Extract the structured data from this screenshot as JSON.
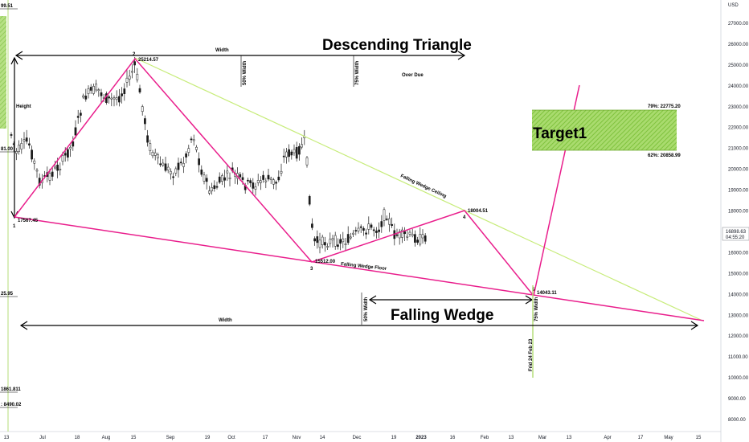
{
  "chart_data": {
    "type": "candlestick",
    "y_axis": {
      "unit": "USD",
      "ticks": [
        8000,
        9000,
        10000,
        11000,
        12000,
        13000,
        14000,
        15000,
        16000,
        17000,
        18000,
        19000,
        20000,
        21000,
        22000,
        23000,
        24000,
        25000,
        26000,
        27000
      ],
      "tick_labels": [
        "8000.00",
        "9000.00",
        "10000.00",
        "11000.00",
        "12000.00",
        "13000.00",
        "14000.00",
        "15000.00",
        "16000.00",
        "17000.00",
        "18000.00",
        "19000.00",
        "20000.00",
        "21000.00",
        "22000.00",
        "23000.00",
        "24000.00",
        "25000.00",
        "26000.00",
        "27000.00"
      ],
      "last_price": "16898.63",
      "countdown": "04:55:20"
    },
    "x_axis": {
      "tick_labels": [
        "13",
        "Jul",
        "18",
        "Aug",
        "15",
        "Sep",
        "19",
        "Oct",
        "17",
        "Nov",
        "14",
        "Dec",
        "19",
        "2023",
        "16",
        "Feb",
        "13",
        "Mar",
        "13",
        "Apr",
        "17",
        "May",
        "15"
      ]
    },
    "pattern_points": [
      {
        "label": "1",
        "value": "17567.45"
      },
      {
        "label": "2",
        "value": "25214.57"
      },
      {
        "label": "3",
        "value": "15512.00"
      },
      {
        "label": "4",
        "value": "18004.51"
      },
      {
        "label": "5",
        "value": "14043.11"
      }
    ],
    "titles": {
      "triangle": "Descending Triangle",
      "wedge": "Falling Wedge",
      "target": "Target1"
    },
    "annotations": {
      "width_top": "Width",
      "width_bottom": "Width",
      "height": "Height",
      "w50_top": "50% Width",
      "w75_top": "75% Width",
      "over_due": "Over Due",
      "w50_bottom": "50% Width",
      "w75_bottom": "75% Width",
      "ceiling": "Falling Wedge Ceiling",
      "floor": "Falling Wedge Floor",
      "date": "Frid 24 Feb 23"
    },
    "target_zone": {
      "upper_label": "79%: 22775.20",
      "lower_label": "62%: 20858.99",
      "upper": 22775.2,
      "lower": 20858.99
    },
    "left_edge_values": [
      "99.51",
      "81.00",
      "25.95",
      "1861.811",
      ": 8490.02"
    ],
    "colors": {
      "pattern": "#e91e8c",
      "ceiling": "#c7ec7a",
      "target_fill": "#8ccd47",
      "candles": "#1a1a1a",
      "arrows": "#000000"
    }
  }
}
